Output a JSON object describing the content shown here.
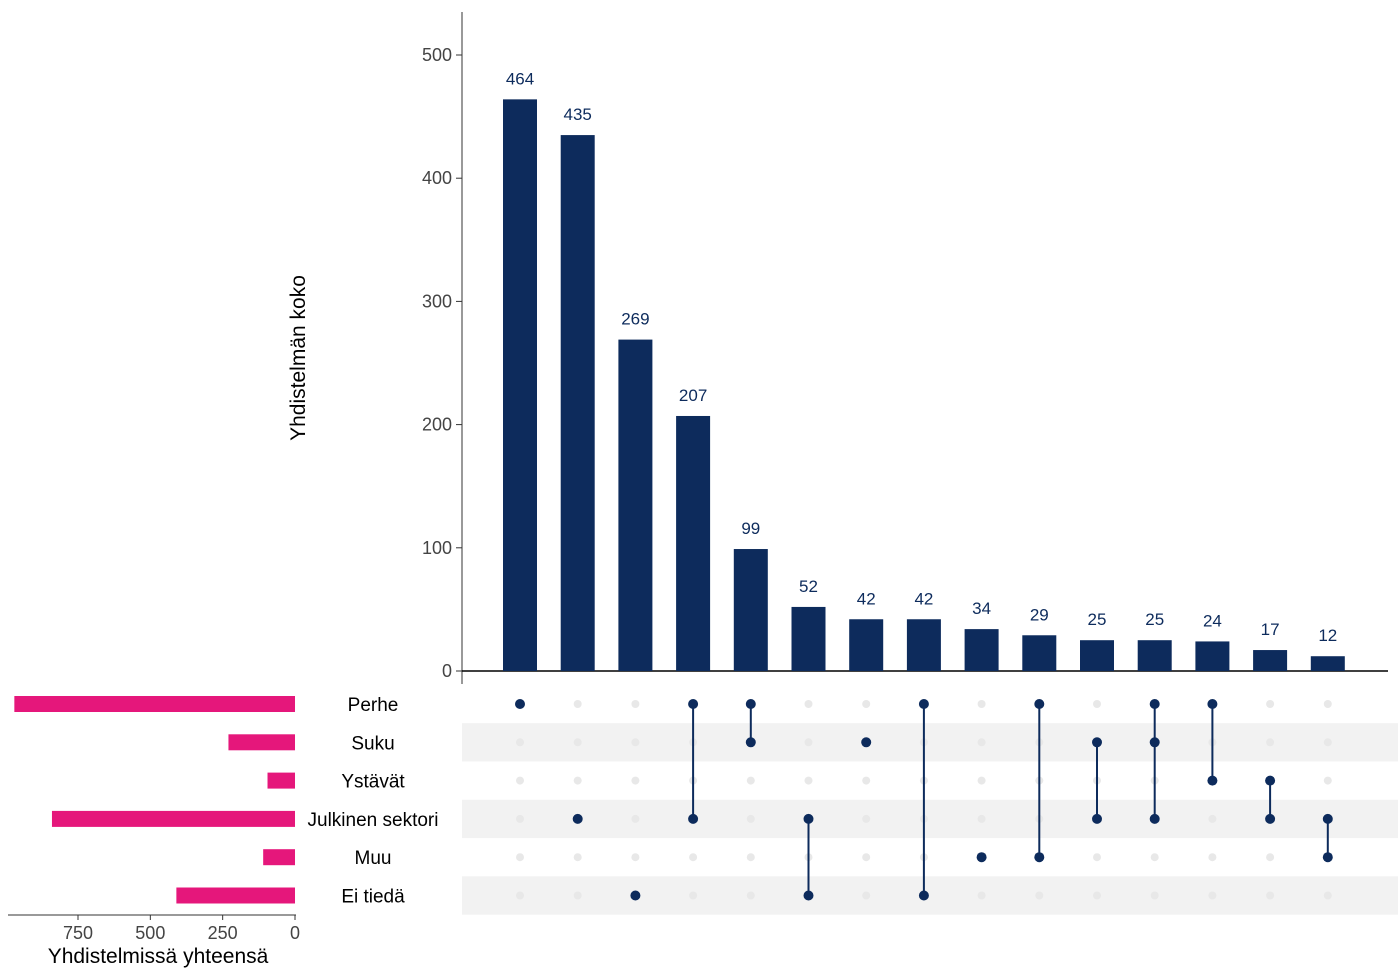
{
  "chart_data": {
    "type": "upset",
    "colors": {
      "intersection_bar": "#0d2b5c",
      "set_size_bar": "#e5177b",
      "dot_active": "#0d2b5c",
      "dot_inactive": "#e8e8e8",
      "stripe": "#f2f2f2",
      "bar_label": "#0d2b5c"
    },
    "intersection_size": {
      "ylabel": "Yhdistelmän koko",
      "ylim": [
        0,
        500
      ],
      "yticks": [
        "0",
        "100",
        "200",
        "300",
        "400",
        "500"
      ],
      "values": [
        464,
        435,
        269,
        207,
        99,
        52,
        42,
        42,
        34,
        29,
        25,
        25,
        24,
        17,
        12
      ]
    },
    "sets": [
      "Perhe",
      "Suku",
      "Ystävät",
      "Julkinen sektori",
      "Muu",
      "Ei tiedä"
    ],
    "set_size": {
      "xlabel": "Yhdistelmissä yhteensä",
      "ticks": [
        "750",
        "500",
        "250",
        "0"
      ],
      "values": [
        970,
        230,
        95,
        840,
        110,
        410
      ]
    },
    "intersections": [
      [
        "Perhe"
      ],
      [
        "Julkinen sektori"
      ],
      [
        "Ei tiedä"
      ],
      [
        "Perhe",
        "Julkinen sektori"
      ],
      [
        "Perhe",
        "Suku"
      ],
      [
        "Julkinen sektori",
        "Ei tiedä"
      ],
      [
        "Suku"
      ],
      [
        "Perhe",
        "Ei tiedä"
      ],
      [
        "Muu"
      ],
      [
        "Perhe",
        "Muu"
      ],
      [
        "Suku",
        "Julkinen sektori"
      ],
      [
        "Perhe",
        "Suku",
        "Julkinen sektori"
      ],
      [
        "Perhe",
        "Ystävät"
      ],
      [
        "Ystävät",
        "Julkinen sektori"
      ],
      [
        "Julkinen sektori",
        "Muu"
      ]
    ]
  }
}
